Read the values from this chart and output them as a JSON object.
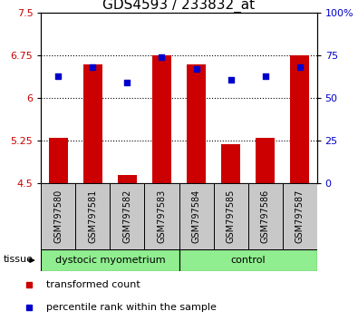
{
  "title": "GDS4593 / 233832_at",
  "samples": [
    "GSM797580",
    "GSM797581",
    "GSM797582",
    "GSM797583",
    "GSM797584",
    "GSM797585",
    "GSM797586",
    "GSM797587"
  ],
  "group_labels": [
    "dystocic myometrium",
    "control"
  ],
  "bar_values": [
    5.3,
    6.6,
    4.65,
    6.75,
    6.6,
    5.2,
    5.3,
    6.75
  ],
  "dot_values": [
    63,
    68,
    59,
    74,
    67,
    61,
    63,
    68
  ],
  "bar_color": "#CC0000",
  "dot_color": "#0000CC",
  "bar_bottom": 4.5,
  "ylim_left": [
    4.5,
    7.5
  ],
  "ylim_right": [
    0,
    100
  ],
  "left_ticks": [
    4.5,
    5.25,
    6.0,
    6.75,
    7.5
  ],
  "right_ticks": [
    0,
    25,
    50,
    75,
    100
  ],
  "right_tick_labels": [
    "0",
    "25",
    "50",
    "75",
    "100%"
  ],
  "grid_lines": [
    5.25,
    6.0,
    6.75
  ],
  "left_tick_color": "#CC0000",
  "right_tick_color": "#0000CC",
  "legend_items": [
    "transformed count",
    "percentile rank within the sample"
  ],
  "tissue_label": "tissue",
  "group1_color": "#90EE90",
  "group2_color": "#90EE90",
  "sample_bg_color": "#C8C8C8",
  "bar_width": 0.55,
  "title_fontsize": 11,
  "tick_fontsize": 8,
  "sample_fontsize": 7,
  "group_fontsize": 8,
  "legend_fontsize": 8
}
